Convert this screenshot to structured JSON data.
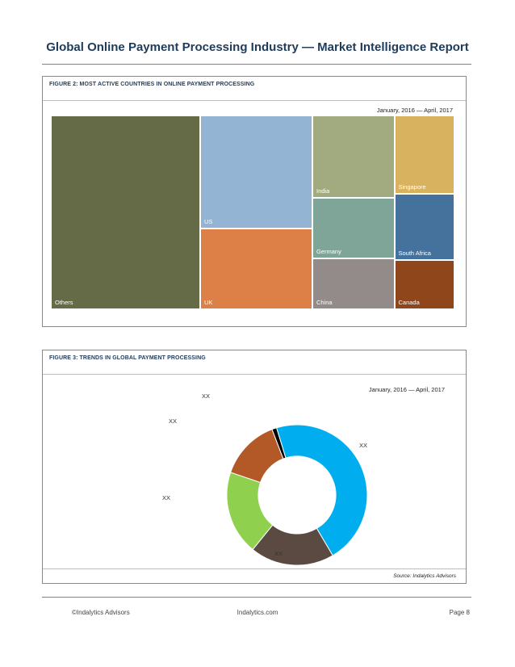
{
  "page": {
    "title": "Global Online Payment Processing Industry — Market Intelligence Report"
  },
  "figure2": {
    "heading": "FIGURE 2: MOST ACTIVE COUNTRIES IN ONLINE PAYMENT PROCESSING",
    "date_range": "January, 2016 — April, 2017"
  },
  "figure3": {
    "heading": "FIGURE 3: TRENDS IN GLOBAL PAYMENT PROCESSING",
    "date_range": "January, 2016 — April, 2017",
    "source": "Source: Indalytics Advisors"
  },
  "footer": {
    "left": "©Indalytics Advisors",
    "center": "Indalytics.com",
    "right": "Page 8"
  },
  "chart_data": [
    {
      "type": "treemap",
      "title": "",
      "categories": [
        "Others",
        "US",
        "UK",
        "India",
        "Singapore",
        "Germany",
        "South Africa",
        "China",
        "Canada"
      ],
      "values": [
        37.0,
        16.2,
        11.6,
        8.6,
        6.0,
        6.4,
        5.1,
        5.3,
        3.8
      ],
      "colors": [
        "#656b46",
        "#93b4d3",
        "#dd8048",
        "#a2aa7f",
        "#d9b25f",
        "#7ea597",
        "#44729c",
        "#938b8a",
        "#8f461b"
      ]
    },
    {
      "type": "pie",
      "style": "donut",
      "title": "",
      "categories": [
        "XX",
        "XX",
        "XX",
        "XX",
        "XX"
      ],
      "values": [
        43,
        18,
        18,
        13,
        1
      ],
      "colors": [
        "#00aeef",
        "#5b4a42",
        "#8fd14f",
        "#b35928",
        "#000000"
      ],
      "start_angle_deg": -17
    }
  ]
}
